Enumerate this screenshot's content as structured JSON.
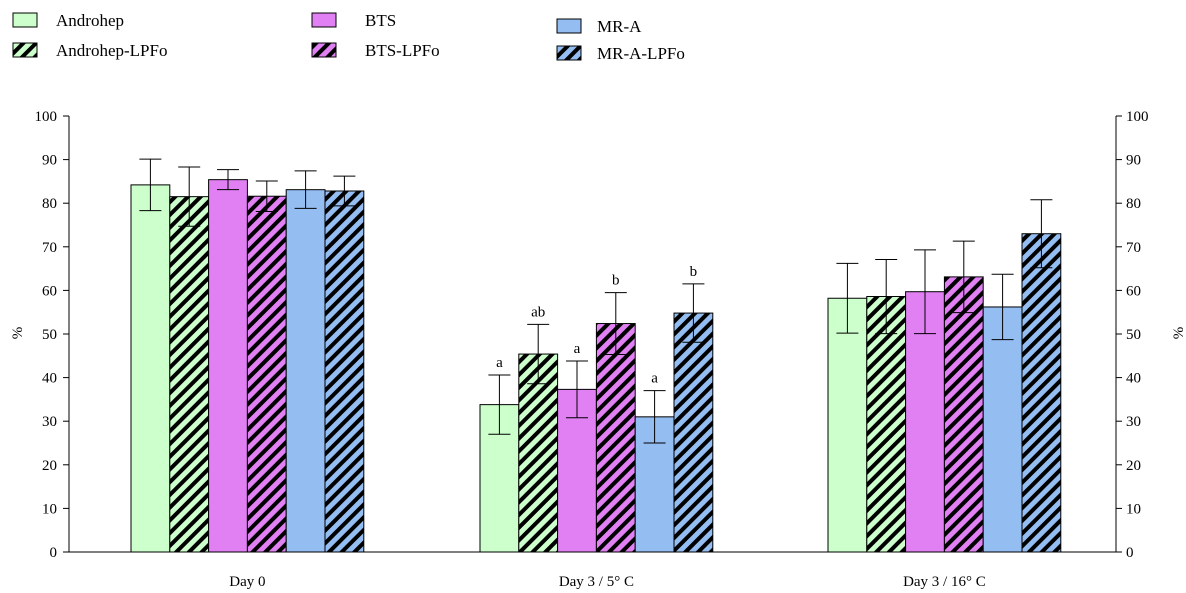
{
  "chart_data": {
    "type": "bar",
    "title": "",
    "xlabel": "",
    "ylabel": "%",
    "ylabel_right": "%",
    "ylim": [
      0,
      100
    ],
    "yticks": [
      0,
      10,
      20,
      30,
      40,
      50,
      60,
      70,
      80,
      90,
      100
    ],
    "grid": false,
    "legend_position": "top-left",
    "categories": [
      "Day 0",
      "Day 3 / 5° C",
      "Day 3 / 16° C"
    ],
    "series": [
      {
        "name": "Androhep",
        "color": "#ccffcc",
        "hatched": false,
        "values": [
          84.2,
          33.8,
          58.2
        ],
        "errors": [
          5.9,
          6.8,
          8.0
        ],
        "labels": [
          "",
          "a",
          ""
        ]
      },
      {
        "name": "Androhep-LPFo",
        "color": "#ccffcc",
        "hatched": true,
        "values": [
          81.5,
          45.4,
          58.6
        ],
        "errors": [
          6.8,
          6.8,
          8.5
        ],
        "labels": [
          "",
          "ab",
          ""
        ]
      },
      {
        "name": "BTS",
        "color": "#e080f2",
        "hatched": false,
        "values": [
          85.4,
          37.3,
          59.7
        ],
        "errors": [
          2.3,
          6.5,
          9.6
        ],
        "labels": [
          "",
          "a",
          ""
        ]
      },
      {
        "name": "BTS-LPFo",
        "color": "#e080f2",
        "hatched": true,
        "values": [
          81.6,
          52.4,
          63.1
        ],
        "errors": [
          3.5,
          7.1,
          8.2
        ],
        "labels": [
          "",
          "b",
          ""
        ]
      },
      {
        "name": "MR-A",
        "color": "#94bdf2",
        "hatched": false,
        "values": [
          83.1,
          31.0,
          56.2
        ],
        "errors": [
          4.3,
          6.0,
          7.5
        ],
        "labels": [
          "",
          "a",
          ""
        ]
      },
      {
        "name": "MR-A-LPFo",
        "color": "#94bdf2",
        "hatched": true,
        "values": [
          82.8,
          54.8,
          73.0
        ],
        "errors": [
          3.4,
          6.7,
          7.8
        ],
        "labels": [
          "",
          "b",
          ""
        ]
      }
    ]
  }
}
